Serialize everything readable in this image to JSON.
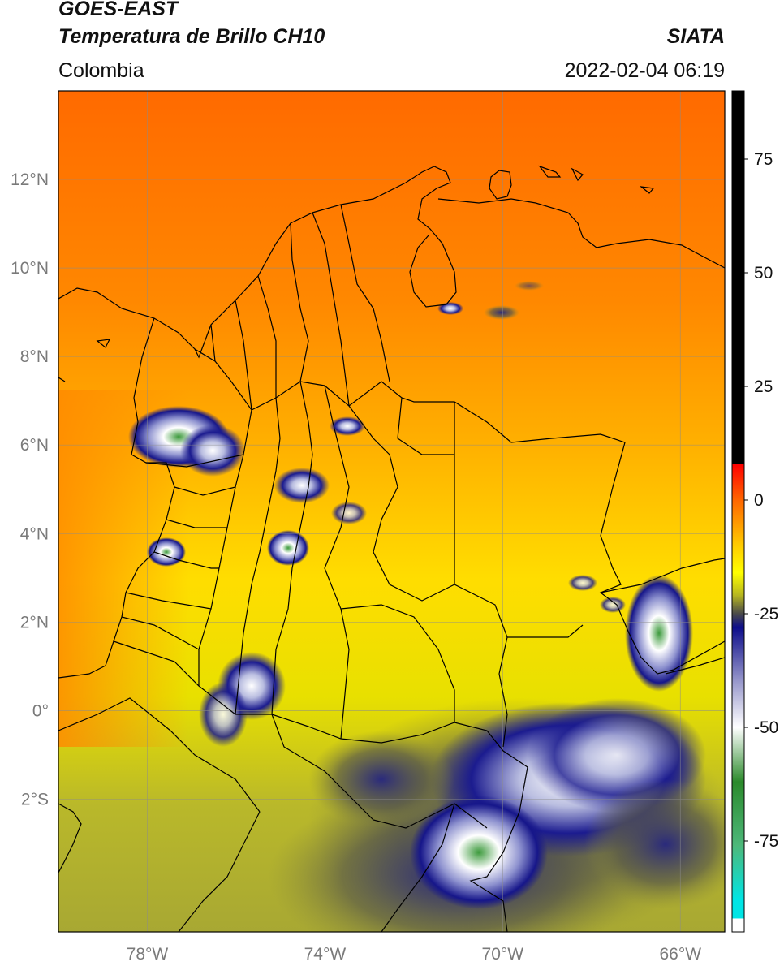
{
  "header": {
    "satellite": "GOES-EAST",
    "product": "Temperatura de Brillo CH10",
    "brand": "SIATA",
    "region": "Colombia",
    "datetime": "2022-02-04 06:19"
  },
  "map": {
    "lon_range": [
      -80,
      -65
    ],
    "lat_range": [
      -5,
      14
    ],
    "lat_ticks": [
      {
        "value": 12,
        "label": "12°N"
      },
      {
        "value": 10,
        "label": "10°N"
      },
      {
        "value": 8,
        "label": "8°N"
      },
      {
        "value": 6,
        "label": "6°N"
      },
      {
        "value": 4,
        "label": "4°N"
      },
      {
        "value": 2,
        "label": "2°N"
      },
      {
        "value": 0,
        "label": "0°"
      },
      {
        "value": -2,
        "label": "2°S"
      }
    ],
    "lon_ticks": [
      {
        "value": -78,
        "label": "78°W"
      },
      {
        "value": -74,
        "label": "74°W"
      },
      {
        "value": -70,
        "label": "70°W"
      },
      {
        "value": -66,
        "label": "66°W"
      }
    ],
    "gridlines": true
  },
  "colorbar": {
    "range": [
      -95,
      90
    ],
    "ticks": [
      {
        "value": 75,
        "label": "75"
      },
      {
        "value": 50,
        "label": "50"
      },
      {
        "value": 25,
        "label": "25"
      },
      {
        "value": 0,
        "label": "0"
      },
      {
        "value": -25,
        "label": "-25"
      },
      {
        "value": -50,
        "label": "-50"
      },
      {
        "value": -75,
        "label": "-75"
      }
    ],
    "stops": [
      {
        "value": 90,
        "color": "#000000"
      },
      {
        "value": 8,
        "color": "#000000"
      },
      {
        "value": 7.9,
        "color": "#ff0000"
      },
      {
        "value": 0,
        "color": "#ff6600"
      },
      {
        "value": -10,
        "color": "#ffcc00"
      },
      {
        "value": -16,
        "color": "#ffff00"
      },
      {
        "value": -21,
        "color": "#b5b520"
      },
      {
        "value": -25,
        "color": "#4a4a4a"
      },
      {
        "value": -28,
        "color": "#0d0d8a"
      },
      {
        "value": -40,
        "color": "#9999cc"
      },
      {
        "value": -50,
        "color": "#ffffff"
      },
      {
        "value": -62,
        "color": "#2b8a2b"
      },
      {
        "value": -76,
        "color": "#4db87a"
      },
      {
        "value": -88,
        "color": "#00e5e5"
      },
      {
        "value": -92,
        "color": "#00e5e5"
      },
      {
        "value": -92.1,
        "color": "#ffffff"
      },
      {
        "value": -95,
        "color": "#ffffff"
      }
    ]
  }
}
